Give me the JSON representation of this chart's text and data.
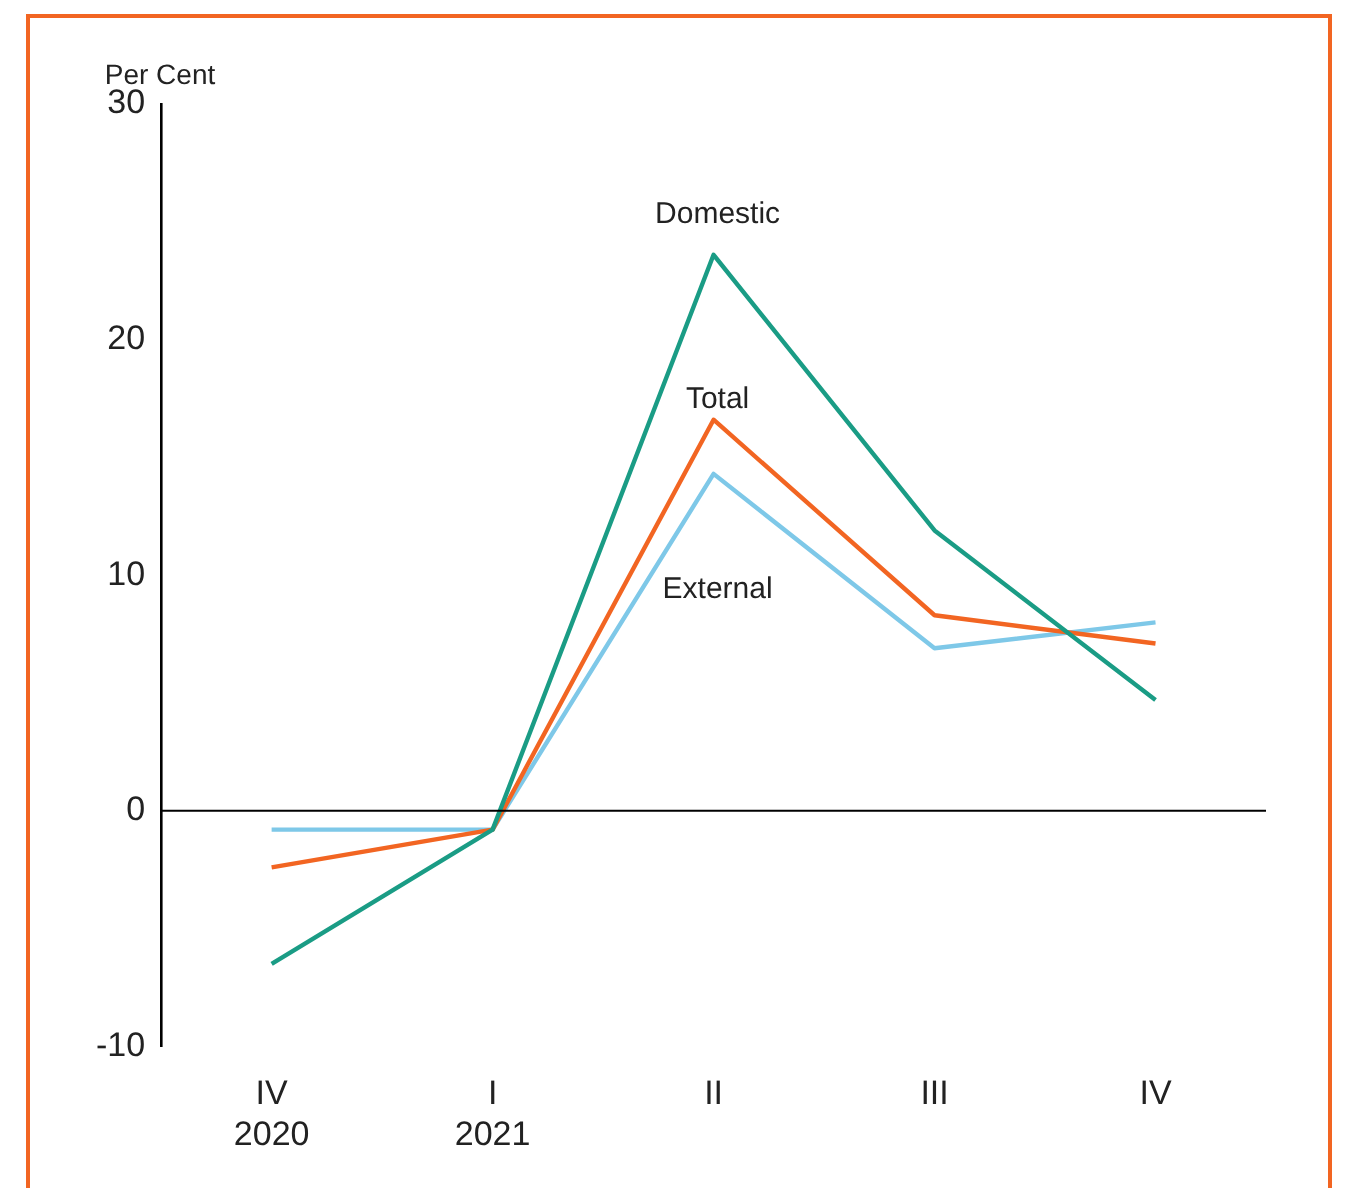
{
  "chart_data": {
    "type": "line",
    "ylabel": "Per Cent",
    "categories": [
      "IV\n2020",
      "I\n2021",
      "II",
      "III",
      "IV"
    ],
    "series": [
      {
        "name": "Domestic",
        "color": "#1a9c85",
        "values": [
          -6.5,
          -0.8,
          23.6,
          11.9,
          4.7
        ]
      },
      {
        "name": "Total",
        "color": "#f26522",
        "values": [
          -2.4,
          -0.8,
          16.6,
          8.3,
          7.1
        ]
      },
      {
        "name": "External",
        "color": "#7ec8e8",
        "values": [
          -0.8,
          -0.8,
          14.3,
          6.9,
          8.0
        ]
      }
    ],
    "ylim": [
      -10,
      30
    ],
    "yticks": [
      -10,
      0,
      10,
      20,
      30
    ],
    "ref_lines": [
      {
        "axis": "y",
        "value": 0,
        "color": "#000000"
      }
    ],
    "grid": false,
    "legend": false,
    "marker": "none",
    "line_style": "solid"
  }
}
